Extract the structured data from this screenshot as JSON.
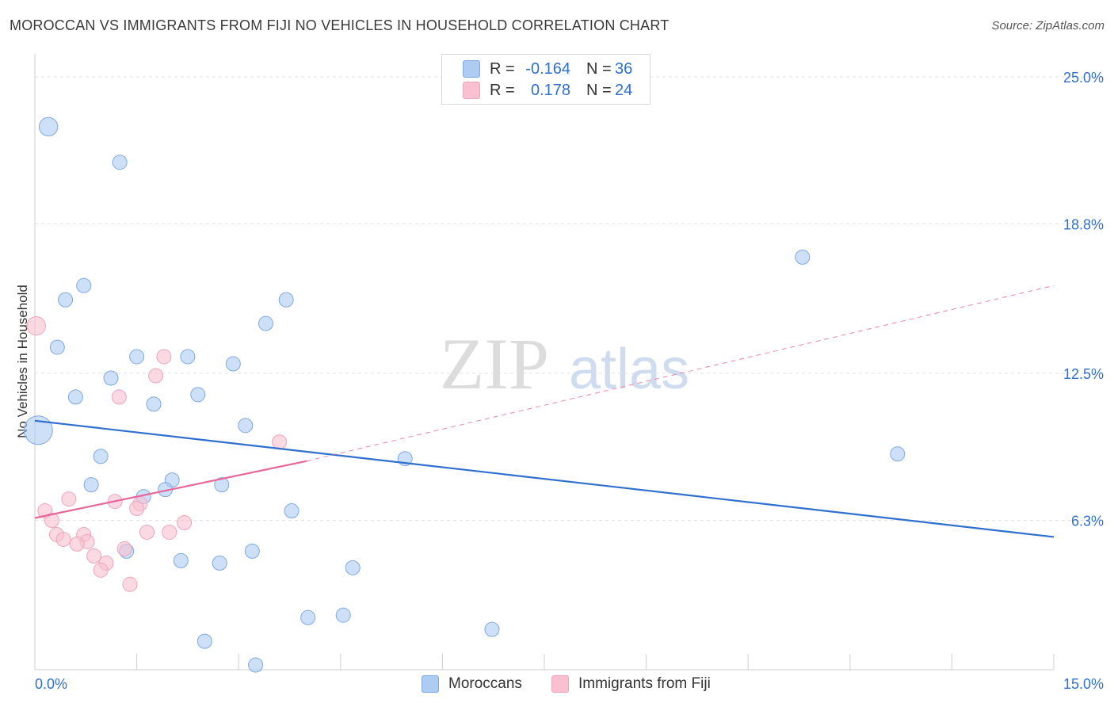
{
  "title": "MOROCCAN VS IMMIGRANTS FROM FIJI NO VEHICLES IN HOUSEHOLD CORRELATION CHART",
  "source": "Source: ZipAtlas.com",
  "watermark": {
    "zip": "ZIP",
    "atlas": "atlas"
  },
  "legend_top": [
    {
      "r_label": "R =",
      "r_value": "-0.164",
      "n_label": "N =",
      "n_value": "36",
      "color": "#aecbf2"
    },
    {
      "r_label": "R =",
      "r_value": "0.178",
      "n_label": "N =",
      "n_value": "24",
      "color": "#f8c0d0"
    }
  ],
  "legend_bottom": [
    {
      "label": "Moroccans",
      "color": "#aecbf2"
    },
    {
      "label": "Immigrants from Fiji",
      "color": "#f8c0d0"
    }
  ],
  "chart_data": {
    "type": "scatter",
    "ylabel": "No Vehicles in Household",
    "xlim": [
      0,
      15
    ],
    "ylim": [
      0,
      25
    ],
    "x_tick_labels": [
      {
        "value": 0,
        "label": "0.0%"
      },
      {
        "value": 15,
        "label": "15.0%"
      }
    ],
    "y_tick_labels": [
      {
        "value": 6.3,
        "label": "6.3%"
      },
      {
        "value": 12.5,
        "label": "12.5%"
      },
      {
        "value": 18.8,
        "label": "18.8%"
      },
      {
        "value": 25.0,
        "label": "25.0%"
      }
    ],
    "grid": true,
    "series": [
      {
        "name": "Moroccans",
        "color": "#2f6fcf",
        "fill": "#aecbf2",
        "stroke": "#7ea9e4",
        "points": [
          {
            "x": 0.2,
            "y": 22.9,
            "s": 1.3
          },
          {
            "x": 1.25,
            "y": 21.4
          },
          {
            "x": 0.72,
            "y": 16.2
          },
          {
            "x": 0.45,
            "y": 15.6
          },
          {
            "x": 0.33,
            "y": 13.6
          },
          {
            "x": 3.7,
            "y": 15.6
          },
          {
            "x": 3.4,
            "y": 14.6
          },
          {
            "x": 1.5,
            "y": 13.2
          },
          {
            "x": 2.25,
            "y": 13.2
          },
          {
            "x": 2.92,
            "y": 12.9
          },
          {
            "x": 1.12,
            "y": 12.3
          },
          {
            "x": 0.6,
            "y": 11.5
          },
          {
            "x": 2.4,
            "y": 11.6
          },
          {
            "x": 1.75,
            "y": 11.2
          },
          {
            "x": 3.1,
            "y": 10.3
          },
          {
            "x": 0.05,
            "y": 10.1,
            "s": 2.0
          },
          {
            "x": 0.97,
            "y": 9.0
          },
          {
            "x": 5.45,
            "y": 8.9
          },
          {
            "x": 12.7,
            "y": 9.1
          },
          {
            "x": 11.3,
            "y": 17.4
          },
          {
            "x": 2.02,
            "y": 8.0
          },
          {
            "x": 0.83,
            "y": 7.8
          },
          {
            "x": 2.75,
            "y": 7.8
          },
          {
            "x": 1.92,
            "y": 7.6
          },
          {
            "x": 1.6,
            "y": 7.3
          },
          {
            "x": 3.78,
            "y": 6.7
          },
          {
            "x": 1.35,
            "y": 5.0
          },
          {
            "x": 3.2,
            "y": 5.0
          },
          {
            "x": 2.15,
            "y": 4.6
          },
          {
            "x": 2.72,
            "y": 4.5
          },
          {
            "x": 4.68,
            "y": 4.3
          },
          {
            "x": 4.02,
            "y": 2.2
          },
          {
            "x": 4.54,
            "y": 2.3
          },
          {
            "x": 6.73,
            "y": 1.7
          },
          {
            "x": 2.5,
            "y": 1.2
          },
          {
            "x": 3.25,
            "y": 0.2
          }
        ],
        "trend": {
          "x0": 0.0,
          "y0": 10.5,
          "x1": 15.0,
          "y1": 5.6
        }
      },
      {
        "name": "Immigrants from Fiji",
        "color": "#e8679a",
        "fill": "#f8c0d0",
        "stroke": "#efa3bc",
        "points": [
          {
            "x": 0.02,
            "y": 14.5,
            "s": 1.3
          },
          {
            "x": 1.9,
            "y": 13.2
          },
          {
            "x": 1.78,
            "y": 12.4
          },
          {
            "x": 1.24,
            "y": 11.5
          },
          {
            "x": 3.6,
            "y": 9.6
          },
          {
            "x": 0.5,
            "y": 7.2
          },
          {
            "x": 1.18,
            "y": 7.1
          },
          {
            "x": 1.55,
            "y": 7.0
          },
          {
            "x": 1.5,
            "y": 6.8
          },
          {
            "x": 0.15,
            "y": 6.7
          },
          {
            "x": 0.25,
            "y": 6.3
          },
          {
            "x": 2.2,
            "y": 6.2
          },
          {
            "x": 0.32,
            "y": 5.7
          },
          {
            "x": 0.72,
            "y": 5.7
          },
          {
            "x": 1.65,
            "y": 5.8
          },
          {
            "x": 1.98,
            "y": 5.8
          },
          {
            "x": 0.42,
            "y": 5.5
          },
          {
            "x": 0.77,
            "y": 5.4
          },
          {
            "x": 0.62,
            "y": 5.3
          },
          {
            "x": 1.32,
            "y": 5.1
          },
          {
            "x": 0.87,
            "y": 4.8
          },
          {
            "x": 1.05,
            "y": 4.5
          },
          {
            "x": 0.97,
            "y": 4.2
          },
          {
            "x": 1.4,
            "y": 3.6
          }
        ],
        "trend": {
          "x0": 0.0,
          "y0": 6.4,
          "x1": 4.0,
          "y1": 8.8
        },
        "trend_dashed": {
          "x0": 4.0,
          "y0": 8.8,
          "x1": 15.0,
          "y1": 16.2
        }
      }
    ]
  }
}
